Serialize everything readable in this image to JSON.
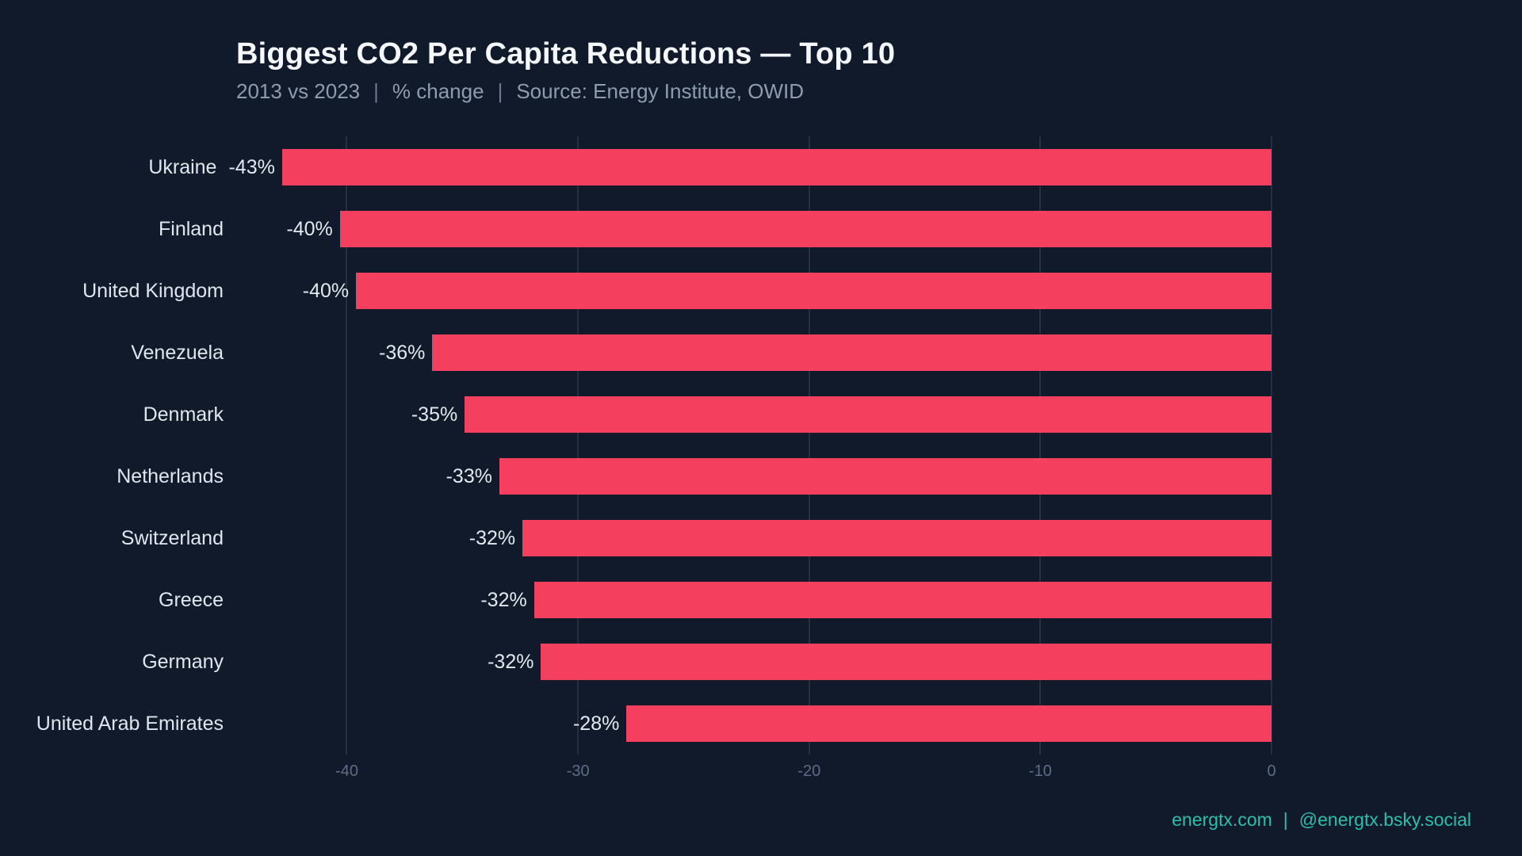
{
  "header": {
    "title": "Biggest CO2 Per Capita Reductions — Top 10",
    "subtitle_parts": [
      "2013 vs 2023",
      "% change",
      "Source: Energy Institute, OWID"
    ],
    "subtitle_separator": "|"
  },
  "footer": {
    "website": "energtx.com",
    "separator": "|",
    "social": "@energtx.bsky.social"
  },
  "colors": {
    "background": "#111a2a",
    "bar": "#f43f5e",
    "gridline": "#2a3448",
    "title_text": "#f5f8fc",
    "subtitle_text": "#8e9cb0",
    "label_text": "#e2e8f0",
    "tick_text": "#5f6c85",
    "accent_teal": "#2bbfae"
  },
  "chart_data": {
    "type": "bar",
    "orientation": "horizontal",
    "title": "Biggest CO2 Per Capita Reductions — Top 10",
    "subtitle": "2013 vs 2023 | % change | Source: Energy Institute, OWID",
    "categories": [
      "Ukraine",
      "Finland",
      "United Kingdom",
      "Venezuela",
      "Denmark",
      "Netherlands",
      "Switzerland",
      "Greece",
      "Germany",
      "United Arab Emirates"
    ],
    "values": [
      -42.8,
      -40.3,
      -39.6,
      -36.3,
      -34.9,
      -33.4,
      -32.4,
      -31.9,
      -31.6,
      -27.9
    ],
    "bar_labels": [
      "-43%",
      "-40%",
      "-40%",
      "-36%",
      "-35%",
      "-33%",
      "-32%",
      "-32%",
      "-32%",
      "-28%"
    ],
    "xlabel": "",
    "ylabel": "",
    "xlim": [
      -43,
      0
    ],
    "xticks": [
      -40,
      -30,
      -20,
      -10,
      0
    ],
    "grid": "vertical-only",
    "legend": "none",
    "bar_color": "#f43f5e"
  }
}
